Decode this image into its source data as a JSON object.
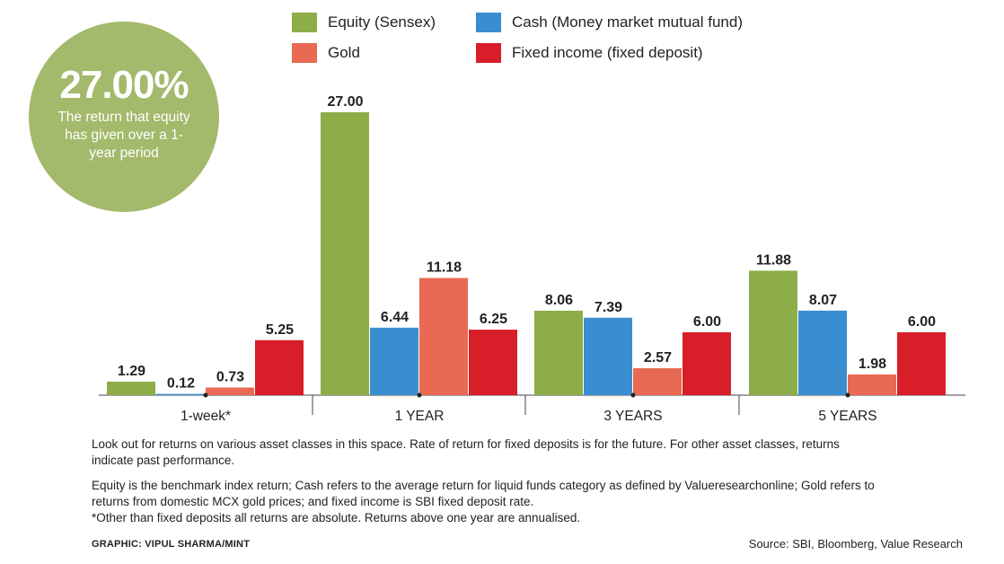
{
  "callout": {
    "value": "27.00%",
    "text": "The return that equity has given over a 1-year period"
  },
  "chart_data": {
    "type": "bar",
    "categories": [
      "1-week*",
      "1 YEAR",
      "3 YEARS",
      "5 YEARS"
    ],
    "series": [
      {
        "name": "Equity (Sensex)",
        "color": "#8cad48",
        "values": [
          1.29,
          27.0,
          8.06,
          11.88
        ]
      },
      {
        "name": "Cash (Money market mutual fund)",
        "color": "#3a8ed0",
        "values": [
          0.12,
          6.44,
          7.39,
          8.07
        ]
      },
      {
        "name": "Gold",
        "color": "#e86a52",
        "values": [
          0.73,
          11.18,
          2.57,
          1.98
        ]
      },
      {
        "name": "Fixed income (fixed deposit)",
        "color": "#d81e28",
        "values": [
          5.25,
          6.25,
          6.0,
          6.0
        ]
      }
    ],
    "value_labels": [
      [
        "1.29",
        "27.00",
        "8.06",
        "11.88"
      ],
      [
        "0.12",
        "6.44",
        "7.39",
        "8.07"
      ],
      [
        "0.73",
        "11.18",
        "2.57",
        "1.98"
      ],
      [
        "5.25",
        "6.25",
        "6.00",
        "6.00"
      ]
    ],
    "ylim": [
      0,
      27
    ],
    "grid": false,
    "legend_position": "top"
  },
  "notes": {
    "para1": "Look out for returns on various asset classes in this space. Rate of return for fixed deposits is for the future. For other asset classes, returns indicate past performance.",
    "para2": "Equity is the benchmark index return; Cash refers to the average return for liquid funds category as defined by Valueresearchonline; Gold refers to returns from domestic MCX gold prices; and fixed income is SBI fixed deposit rate.",
    "footnote": "*Other than fixed deposits all returns are absolute. Returns above one year are annualised."
  },
  "credit": "GRAPHIC: VIPUL SHARMA/MINT",
  "source": "Source: SBI, Bloomberg, Value Research"
}
